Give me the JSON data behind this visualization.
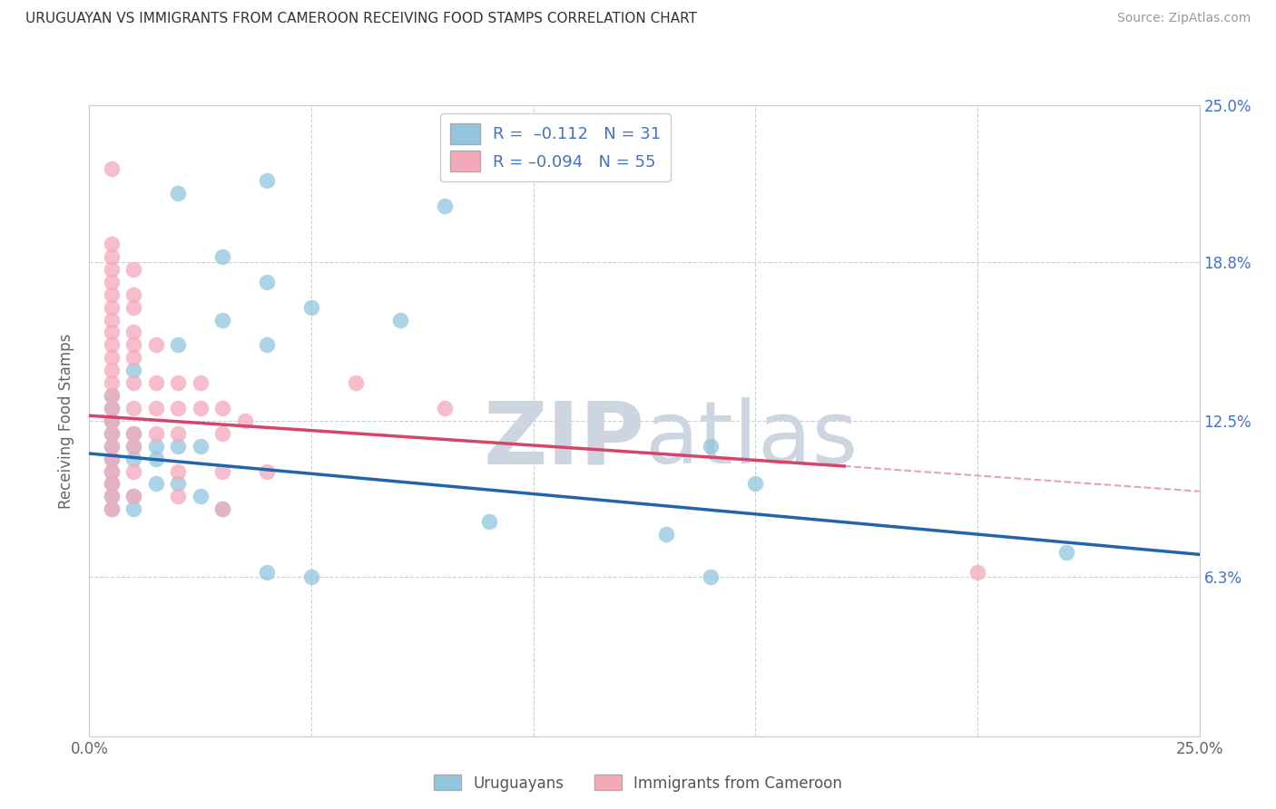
{
  "title": "URUGUAYAN VS IMMIGRANTS FROM CAMEROON RECEIVING FOOD STAMPS CORRELATION CHART",
  "source": "Source: ZipAtlas.com",
  "ylabel": "Receiving Food Stamps",
  "xlabel": "",
  "xlim": [
    0.0,
    0.25
  ],
  "ylim": [
    0.0,
    0.25
  ],
  "ytick_values": [
    0.0,
    0.063,
    0.125,
    0.188,
    0.25
  ],
  "xtick_values": [
    0.0,
    0.05,
    0.1,
    0.15,
    0.2,
    0.25
  ],
  "right_ytick_labels": [
    "",
    "6.3%",
    "12.5%",
    "18.8%",
    "25.0%"
  ],
  "blue_color": "#92c5de",
  "pink_color": "#f4a9bb",
  "blue_line_color": "#2166ac",
  "pink_line_color": "#d6446a",
  "watermark_top": "ZIP",
  "watermark_bottom": "atlas",
  "watermark_color": "#cdd5e0",
  "background_color": "#ffffff",
  "grid_color": "#c8d0dc",
  "blue_line": {
    "x0": 0.0,
    "y0": 0.112,
    "x1": 0.25,
    "y1": 0.072
  },
  "pink_line_solid": {
    "x0": 0.0,
    "y0": 0.127,
    "x1": 0.17,
    "y1": 0.107
  },
  "pink_line_dashed": {
    "x0": 0.17,
    "y0": 0.107,
    "x1": 0.25,
    "y1": 0.097
  },
  "uruguayan_points": [
    [
      0.02,
      0.215
    ],
    [
      0.04,
      0.22
    ],
    [
      0.08,
      0.21
    ],
    [
      0.03,
      0.19
    ],
    [
      0.04,
      0.18
    ],
    [
      0.05,
      0.17
    ],
    [
      0.03,
      0.165
    ],
    [
      0.07,
      0.165
    ],
    [
      0.02,
      0.155
    ],
    [
      0.04,
      0.155
    ],
    [
      0.01,
      0.145
    ],
    [
      0.005,
      0.135
    ],
    [
      0.005,
      0.13
    ],
    [
      0.005,
      0.125
    ],
    [
      0.005,
      0.12
    ],
    [
      0.005,
      0.115
    ],
    [
      0.005,
      0.11
    ],
    [
      0.005,
      0.105
    ],
    [
      0.005,
      0.1
    ],
    [
      0.01,
      0.12
    ],
    [
      0.01,
      0.115
    ],
    [
      0.01,
      0.11
    ],
    [
      0.015,
      0.115
    ],
    [
      0.015,
      0.11
    ],
    [
      0.02,
      0.115
    ],
    [
      0.025,
      0.115
    ],
    [
      0.005,
      0.095
    ],
    [
      0.005,
      0.09
    ],
    [
      0.01,
      0.095
    ],
    [
      0.01,
      0.09
    ],
    [
      0.015,
      0.1
    ],
    [
      0.02,
      0.1
    ],
    [
      0.025,
      0.095
    ],
    [
      0.03,
      0.09
    ],
    [
      0.14,
      0.115
    ],
    [
      0.15,
      0.1
    ],
    [
      0.09,
      0.085
    ],
    [
      0.13,
      0.08
    ],
    [
      0.22,
      0.073
    ],
    [
      0.04,
      0.065
    ],
    [
      0.05,
      0.063
    ],
    [
      0.14,
      0.063
    ]
  ],
  "cameroon_points": [
    [
      0.005,
      0.225
    ],
    [
      0.005,
      0.195
    ],
    [
      0.005,
      0.19
    ],
    [
      0.005,
      0.185
    ],
    [
      0.005,
      0.18
    ],
    [
      0.01,
      0.185
    ],
    [
      0.005,
      0.175
    ],
    [
      0.005,
      0.17
    ],
    [
      0.01,
      0.175
    ],
    [
      0.01,
      0.17
    ],
    [
      0.005,
      0.165
    ],
    [
      0.005,
      0.16
    ],
    [
      0.01,
      0.16
    ],
    [
      0.005,
      0.155
    ],
    [
      0.005,
      0.15
    ],
    [
      0.005,
      0.145
    ],
    [
      0.01,
      0.155
    ],
    [
      0.01,
      0.15
    ],
    [
      0.015,
      0.155
    ],
    [
      0.005,
      0.14
    ],
    [
      0.005,
      0.135
    ],
    [
      0.01,
      0.14
    ],
    [
      0.015,
      0.14
    ],
    [
      0.02,
      0.14
    ],
    [
      0.025,
      0.14
    ],
    [
      0.005,
      0.13
    ],
    [
      0.005,
      0.125
    ],
    [
      0.005,
      0.12
    ],
    [
      0.01,
      0.13
    ],
    [
      0.015,
      0.13
    ],
    [
      0.02,
      0.13
    ],
    [
      0.025,
      0.13
    ],
    [
      0.03,
      0.13
    ],
    [
      0.035,
      0.125
    ],
    [
      0.005,
      0.115
    ],
    [
      0.005,
      0.11
    ],
    [
      0.01,
      0.12
    ],
    [
      0.01,
      0.115
    ],
    [
      0.015,
      0.12
    ],
    [
      0.02,
      0.12
    ],
    [
      0.03,
      0.12
    ],
    [
      0.005,
      0.105
    ],
    [
      0.005,
      0.1
    ],
    [
      0.01,
      0.105
    ],
    [
      0.02,
      0.105
    ],
    [
      0.03,
      0.105
    ],
    [
      0.04,
      0.105
    ],
    [
      0.005,
      0.095
    ],
    [
      0.005,
      0.09
    ],
    [
      0.01,
      0.095
    ],
    [
      0.02,
      0.095
    ],
    [
      0.03,
      0.09
    ],
    [
      0.06,
      0.14
    ],
    [
      0.08,
      0.13
    ],
    [
      0.2,
      0.065
    ]
  ]
}
